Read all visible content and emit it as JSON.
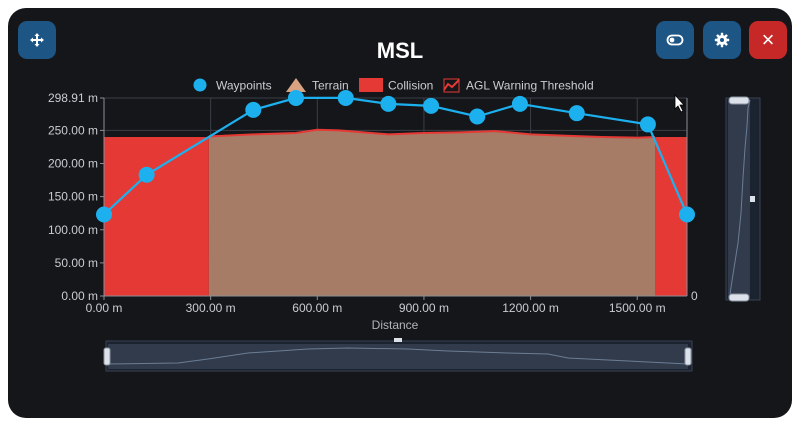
{
  "title": "MSL",
  "toolbar": {
    "move_icon": "move-icon",
    "toggle_icon": "toggle-icon",
    "settings_icon": "gear-icon",
    "close_icon": "close-icon",
    "close_label": "×"
  },
  "chart_data": {
    "type": "area",
    "title": "MSL",
    "xlabel": "Distance",
    "ylabel": "",
    "xlim": [
      0,
      1640
    ],
    "ylim": [
      0,
      298.91
    ],
    "grid": true,
    "legend_position": "top",
    "x_ticks": [
      "0.00 m",
      "300.00 m",
      "600.00 m",
      "900.00 m",
      "1200.00 m",
      "1500.00 m"
    ],
    "x_tick_values": [
      0,
      300,
      600,
      900,
      1200,
      1500
    ],
    "y_ticks": [
      "0.00 m",
      "50.00 m",
      "100.00 m",
      "150.00 m",
      "200.00 m",
      "250.00 m",
      "298.91 m"
    ],
    "y_tick_values": [
      0,
      50,
      100,
      150,
      200,
      250,
      298.91
    ],
    "right_axis_label": "0",
    "legend": [
      {
        "name": "Waypoints",
        "shape": "circle",
        "color": "#1db0ee"
      },
      {
        "name": "Terrain",
        "shape": "triangle",
        "color": "#d9a383"
      },
      {
        "name": "Collision",
        "shape": "rect",
        "color": "#e53935"
      },
      {
        "name": "AGL Warning Threshold",
        "shape": "line",
        "color": "#e53935"
      }
    ],
    "series": [
      {
        "name": "Waypoints",
        "color": "#1db0ee",
        "x": [
          0,
          120,
          420,
          540,
          680,
          800,
          920,
          1050,
          1170,
          1330,
          1530,
          1640
        ],
        "y": [
          123,
          183,
          281,
          299,
          299,
          290,
          287,
          271,
          290,
          276,
          259,
          123
        ]
      },
      {
        "name": "Terrain",
        "color": "#a67c66",
        "x": [
          0,
          300,
          420,
          540,
          600,
          660,
          800,
          900,
          1000,
          1100,
          1200,
          1300,
          1400,
          1500,
          1550,
          1640
        ],
        "y": [
          240,
          241,
          244,
          246,
          251,
          250,
          244,
          246,
          247,
          249,
          244,
          242,
          240,
          239,
          240,
          240
        ]
      },
      {
        "name": "Collision",
        "color": "#e53935",
        "x": [
          0,
          300,
          1550,
          1640
        ],
        "y": [
          240,
          240,
          240,
          240
        ]
      }
    ],
    "collision_zones": [
      [
        0,
        295
      ],
      [
        1550,
        1640
      ]
    ]
  }
}
